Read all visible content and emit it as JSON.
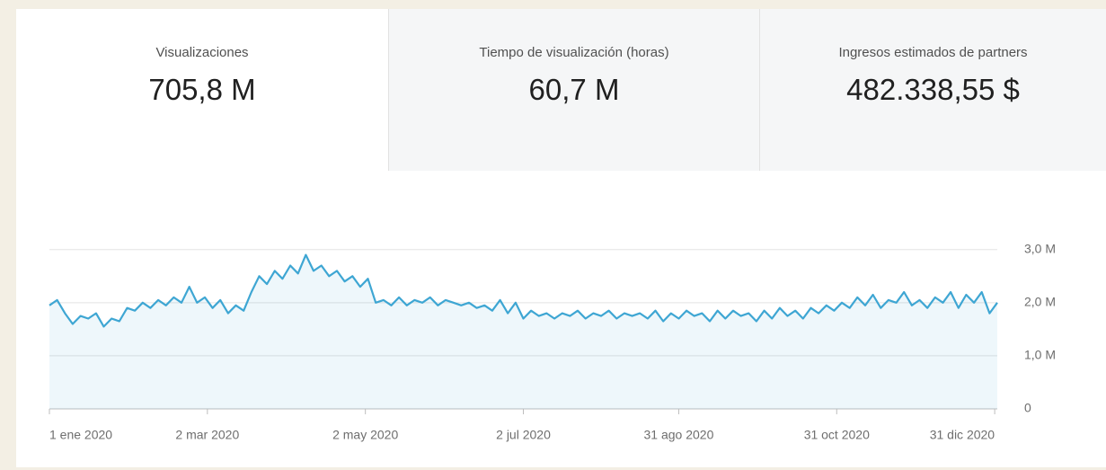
{
  "tabs": [
    {
      "label": "Visualizaciones",
      "value": "705,8 M"
    },
    {
      "label": "Tiempo de visualización (horas)",
      "value": "60,7 M"
    },
    {
      "label": "Ingresos estimados de partners",
      "value": "482.338,55 $"
    }
  ],
  "chart_data": {
    "type": "area",
    "x": [
      0,
      3,
      6,
      9,
      12,
      15,
      18,
      21,
      24,
      27,
      30,
      33,
      36,
      39,
      42,
      45,
      48,
      51,
      54,
      57,
      60,
      63,
      66,
      69,
      72,
      75,
      78,
      81,
      84,
      87,
      90,
      93,
      96,
      99,
      102,
      105,
      108,
      111,
      114,
      117,
      120,
      123,
      126,
      129,
      132,
      135,
      138,
      141,
      144,
      147,
      150,
      153,
      156,
      159,
      162,
      165,
      168,
      171,
      174,
      177,
      180,
      183,
      186,
      189,
      192,
      195,
      198,
      201,
      204,
      207,
      210,
      213,
      216,
      219,
      222,
      225,
      228,
      231,
      234,
      237,
      240,
      243,
      246,
      249,
      252,
      255,
      258,
      261,
      264,
      267,
      270,
      273,
      276,
      279,
      282,
      285,
      288,
      291,
      294,
      297,
      300,
      303,
      306,
      309,
      312,
      315,
      318,
      321,
      324,
      327,
      330,
      333,
      336,
      339,
      342,
      345,
      348,
      351,
      354,
      357,
      360,
      363,
      366
    ],
    "series": [
      {
        "name": "Visualizaciones",
        "color": "#3ea6d3",
        "values": [
          1.95,
          2.05,
          1.8,
          1.6,
          1.75,
          1.7,
          1.8,
          1.55,
          1.7,
          1.65,
          1.9,
          1.85,
          2.0,
          1.9,
          2.05,
          1.95,
          2.1,
          2.0,
          2.3,
          2.0,
          2.1,
          1.9,
          2.05,
          1.8,
          1.95,
          1.85,
          2.2,
          2.5,
          2.35,
          2.6,
          2.45,
          2.7,
          2.55,
          2.9,
          2.6,
          2.7,
          2.5,
          2.6,
          2.4,
          2.5,
          2.3,
          2.45,
          2.0,
          2.05,
          1.95,
          2.1,
          1.95,
          2.05,
          2.0,
          2.1,
          1.95,
          2.05,
          2.0,
          1.95,
          2.0,
          1.9,
          1.95,
          1.85,
          2.05,
          1.8,
          2.0,
          1.7,
          1.85,
          1.75,
          1.8,
          1.7,
          1.8,
          1.75,
          1.85,
          1.7,
          1.8,
          1.75,
          1.85,
          1.7,
          1.8,
          1.75,
          1.8,
          1.7,
          1.85,
          1.65,
          1.8,
          1.7,
          1.85,
          1.75,
          1.8,
          1.65,
          1.85,
          1.7,
          1.85,
          1.75,
          1.8,
          1.65,
          1.85,
          1.7,
          1.9,
          1.75,
          1.85,
          1.7,
          1.9,
          1.8,
          1.95,
          1.85,
          2.0,
          1.9,
          2.1,
          1.95,
          2.15,
          1.9,
          2.05,
          2.0,
          2.2,
          1.95,
          2.05,
          1.9,
          2.1,
          2.0,
          2.2,
          1.9,
          2.15,
          2.0,
          2.2,
          1.8,
          2.0
        ]
      }
    ],
    "xlim": [
      0,
      366
    ],
    "xticks": [
      {
        "value": 0,
        "label": "1 ene 2020"
      },
      {
        "value": 61,
        "label": "2 mar 2020"
      },
      {
        "value": 122,
        "label": "2 may 2020"
      },
      {
        "value": 183,
        "label": "2 jul 2020"
      },
      {
        "value": 243,
        "label": "31 ago 2020"
      },
      {
        "value": 304,
        "label": "31 oct 2020"
      },
      {
        "value": 365,
        "label": "31 dic 2020"
      }
    ],
    "ylim": [
      0,
      3.3
    ],
    "yticks": [
      0,
      {
        "value": 1,
        "label": "1,0 M"
      },
      {
        "value": 2,
        "label": "2,0 M"
      },
      {
        "value": 3,
        "label": "3,0 M"
      }
    ],
    "grid": true
  }
}
